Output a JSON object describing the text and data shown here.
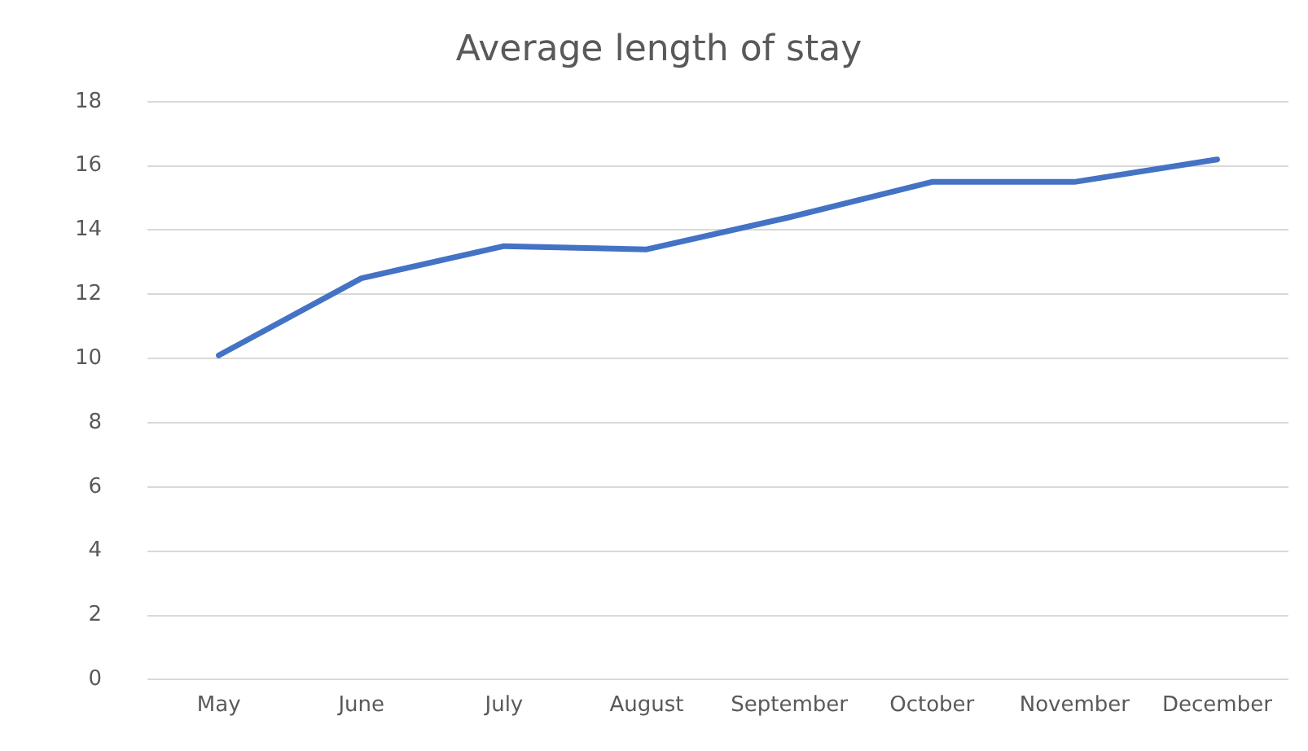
{
  "chart_data": {
    "type": "line",
    "title": "Average length of stay",
    "categories": [
      "May",
      "June",
      "July",
      "August",
      "September",
      "October",
      "November",
      "December"
    ],
    "series": [
      {
        "color": "#4472c4",
        "values": [
          10.1,
          12.5,
          13.5,
          13.4,
          14.4,
          15.5,
          15.5,
          16.2
        ]
      }
    ],
    "ylim": [
      0,
      18
    ],
    "yticks": [
      0,
      2,
      4,
      6,
      8,
      10,
      12,
      14,
      16,
      18
    ],
    "grid": "y",
    "legend": false,
    "marker": "none",
    "line_style": "solid"
  }
}
